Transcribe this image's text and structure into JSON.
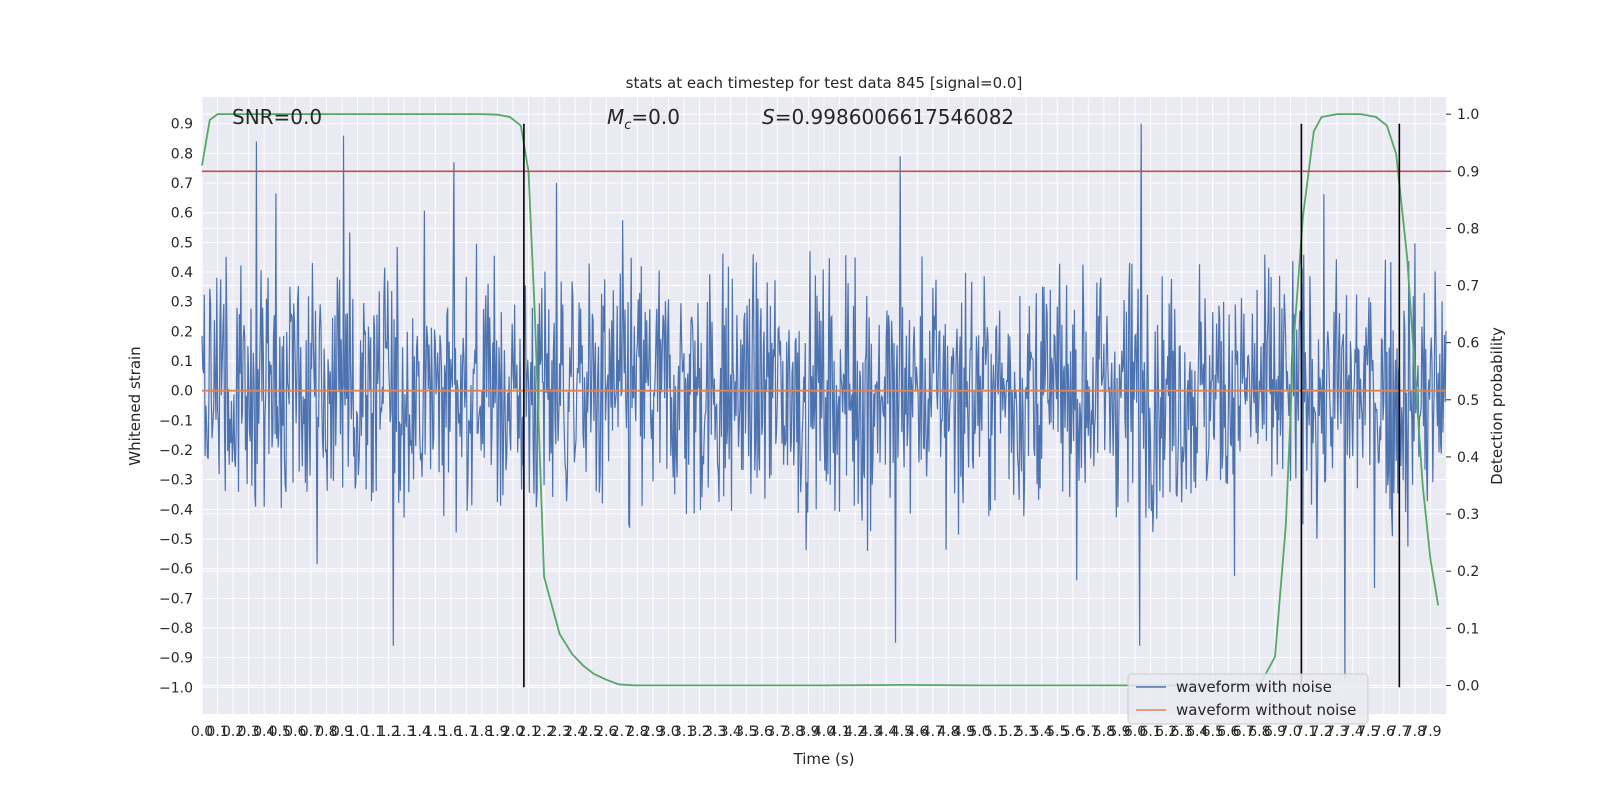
{
  "chart_data": {
    "type": "line",
    "title": "stats at each timestep for test data 845 [signal=0.0]",
    "xlabel": "Time (s)",
    "ylabel_left": "Whitened strain",
    "ylabel_right": "Detection probability",
    "xlim": [
      0.0,
      8.0
    ],
    "ylim_left": [
      -1.09,
      0.99
    ],
    "ylim_right": [
      -0.05,
      1.03
    ],
    "x_ticks": [
      "0.0",
      "0.1",
      "0.2",
      "0.3",
      "0.4",
      "0.5",
      "0.6",
      "0.7",
      "0.8",
      "0.9",
      "1.0",
      "1.1",
      "1.2",
      "1.3",
      "1.4",
      "1.5",
      "1.6",
      "1.7",
      "1.8",
      "1.9",
      "2.0",
      "2.1",
      "2.2",
      "2.3",
      "2.4",
      "2.5",
      "2.6",
      "2.7",
      "2.8",
      "2.9",
      "3.0",
      "3.1",
      "3.2",
      "3.3",
      "3.4",
      "3.5",
      "3.6",
      "3.7",
      "3.8",
      "3.9",
      "4.0",
      "4.1",
      "4.2",
      "4.3",
      "4.4",
      "4.5",
      "4.6",
      "4.7",
      "4.8",
      "4.9",
      "5.0",
      "5.1",
      "5.2",
      "5.3",
      "5.4",
      "5.5",
      "5.6",
      "5.7",
      "5.8",
      "5.9",
      "6.0",
      "6.1",
      "6.2",
      "6.3",
      "6.4",
      "6.5",
      "6.6",
      "6.7",
      "6.8",
      "6.9",
      "7.0",
      "7.1",
      "7.2",
      "7.3",
      "7.4",
      "7.5",
      "7.6",
      "7.7",
      "7.8",
      "7.9"
    ],
    "y_ticks_left": [
      "−1.0",
      "−0.9",
      "−0.8",
      "−0.7",
      "−0.6",
      "−0.5",
      "−0.4",
      "−0.3",
      "−0.2",
      "−0.1",
      "0.0",
      "0.1",
      "0.2",
      "0.3",
      "0.4",
      "0.5",
      "0.6",
      "0.7",
      "0.8",
      "0.9"
    ],
    "y_ticks_right": [
      "0.0",
      "0.1",
      "0.2",
      "0.3",
      "0.4",
      "0.5",
      "0.6",
      "0.7",
      "0.8",
      "0.9",
      "1.0"
    ],
    "annotations": {
      "snr": "SNR=0.0",
      "mc_symbol": "M",
      "mc_sub": "c",
      "mc_value": "=0.0",
      "s_symbol": "S",
      "s_value": "=0.9986006617546082"
    },
    "threshold": {
      "value": 0.9,
      "axis": "right",
      "color": "#c44e52"
    },
    "vlines": [
      2.07,
      7.07,
      7.7
    ],
    "series": [
      {
        "name": "waveform with noise",
        "axis": "left",
        "color": "#4c72b0",
        "envelope": "dense noise, typically within ±0.5, peaks up to 0.9 and down to about −0.97",
        "peaks": [
          {
            "x": 0.35,
            "y": 0.84
          },
          {
            "x": 0.91,
            "y": 0.86
          },
          {
            "x": 1.23,
            "y": -0.86
          },
          {
            "x": 1.62,
            "y": 0.77
          },
          {
            "x": 2.28,
            "y": 0.7
          },
          {
            "x": 4.49,
            "y": 0.79
          },
          {
            "x": 4.46,
            "y": -0.85
          },
          {
            "x": 6.04,
            "y": 0.9
          },
          {
            "x": 6.03,
            "y": -0.86
          },
          {
            "x": 7.35,
            "y": -0.97
          }
        ]
      },
      {
        "name": "waveform without noise",
        "axis": "left",
        "color": "#dd8452",
        "x": [
          0.0,
          8.0
        ],
        "y": [
          0.0,
          0.0
        ]
      },
      {
        "name": "detection probability",
        "axis": "right",
        "color": "#55a868",
        "x": [
          0.0,
          0.05,
          0.1,
          0.2,
          0.5,
          1.0,
          1.5,
          1.8,
          1.9,
          1.98,
          2.05,
          2.1,
          2.14,
          2.2,
          2.3,
          2.38,
          2.45,
          2.52,
          2.6,
          2.68,
          2.78,
          3.0,
          4.0,
          4.5,
          5.0,
          6.0,
          6.6,
          6.8,
          6.9,
          6.97,
          7.02,
          7.08,
          7.15,
          7.2,
          7.3,
          7.45,
          7.55,
          7.62,
          7.68,
          7.75,
          7.8,
          7.85,
          7.9,
          7.95
        ],
        "y": [
          0.91,
          0.99,
          1.0,
          1.0,
          1.0,
          1.0,
          1.0,
          1.0,
          0.999,
          0.995,
          0.98,
          0.9,
          0.65,
          0.19,
          0.09,
          0.055,
          0.035,
          0.02,
          0.01,
          0.002,
          0.0,
          0.0,
          0.0,
          0.001,
          0.0,
          0.0,
          0.0,
          0.0,
          0.05,
          0.28,
          0.6,
          0.82,
          0.97,
          0.995,
          1.0,
          1.0,
          0.995,
          0.98,
          0.93,
          0.75,
          0.55,
          0.35,
          0.22,
          0.14
        ]
      }
    ],
    "legend": {
      "position": "lower-right",
      "entries": [
        {
          "label": "waveform with noise",
          "color": "#4c72b0"
        },
        {
          "label": "waveform without noise",
          "color": "#dd8452"
        }
      ]
    },
    "grid": true,
    "background": "#eaeaf2"
  }
}
